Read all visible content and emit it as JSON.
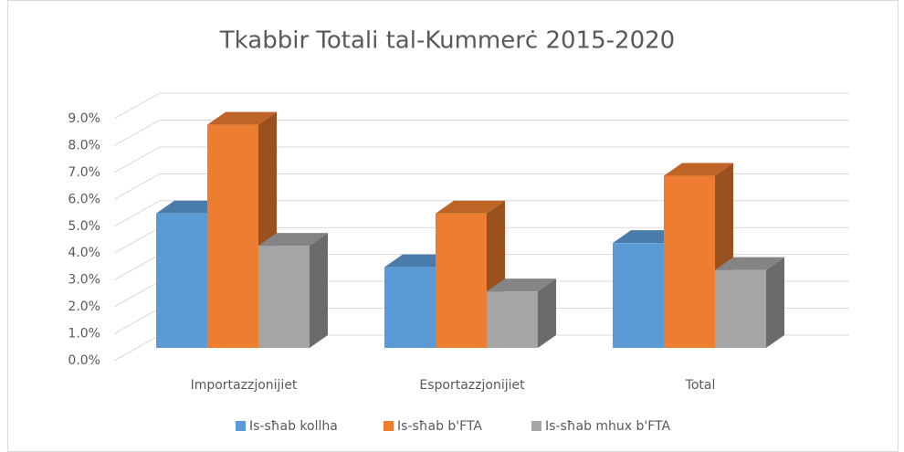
{
  "chart_data": {
    "type": "bar3d",
    "title": "Tkabbir Totali tal-Kummerċ 2015-2020",
    "categories": [
      "Importazzjonijiet",
      "Esportazzjonijiet",
      "Total"
    ],
    "series": [
      {
        "name": "Is-sħab kollha",
        "color": "#5b9bd5",
        "values": [
          5.0,
          3.0,
          3.9
        ]
      },
      {
        "name": "Is-sħab b'FTA",
        "color": "#ed7d31",
        "values": [
          8.3,
          5.0,
          6.4
        ]
      },
      {
        "name": "Is-sħab mhux b'FTA",
        "color": "#a5a5a5",
        "values": [
          3.8,
          2.1,
          2.9
        ]
      }
    ],
    "ylim": [
      0,
      9
    ],
    "yticks": [
      {
        "value": 0,
        "label": "0.0%"
      },
      {
        "value": 1,
        "label": "1.0%"
      },
      {
        "value": 2,
        "label": "2.0%"
      },
      {
        "value": 3,
        "label": "3.0%"
      },
      {
        "value": 4,
        "label": "4.0%"
      },
      {
        "value": 5,
        "label": "5.0%"
      },
      {
        "value": 6,
        "label": "6.0%"
      },
      {
        "value": 7,
        "label": "7.0%"
      },
      {
        "value": 8,
        "label": "8.0%"
      },
      {
        "value": 9,
        "label": "9.0%"
      }
    ],
    "grid": true,
    "legend": "bottom"
  }
}
